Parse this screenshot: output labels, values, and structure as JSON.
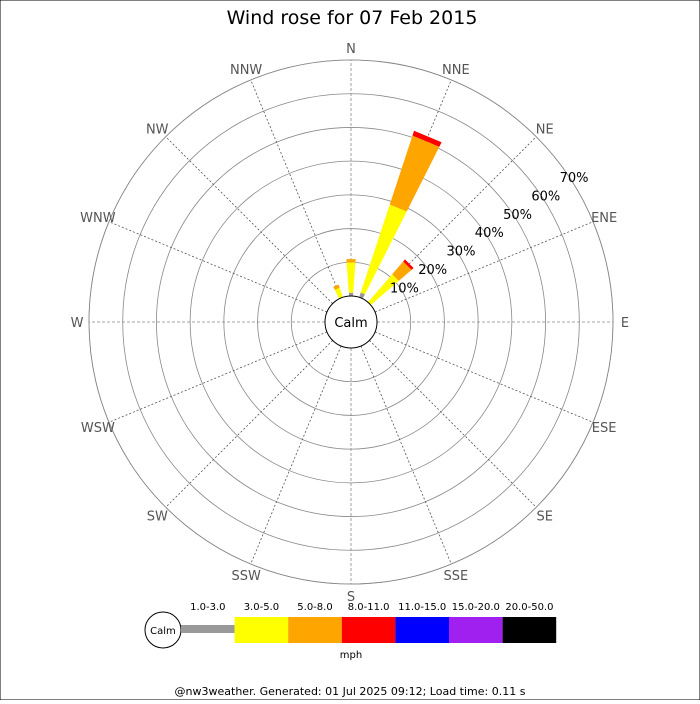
{
  "chart_data": {
    "type": "wind-rose",
    "title": "Wind rose for 07 Feb 2015",
    "calm_label": "Calm",
    "directions": [
      "N",
      "NNE",
      "NE",
      "ENE",
      "E",
      "ESE",
      "SE",
      "SSE",
      "S",
      "SSW",
      "SW",
      "WSW",
      "W",
      "WNW",
      "NW",
      "NNW"
    ],
    "radial_ticks": [
      "10%",
      "20%",
      "30%",
      "40%",
      "50%",
      "60%",
      "70%"
    ],
    "radial_values": [
      10,
      20,
      30,
      40,
      50,
      60,
      70
    ],
    "rmax": 70,
    "speed_bins": [
      {
        "label": "1.0-3.0",
        "color": "#999999"
      },
      {
        "label": "3.0-5.0",
        "color": "#ffff00"
      },
      {
        "label": "5.0-8.0",
        "color": "#ffa500"
      },
      {
        "label": "8.0-11.0",
        "color": "#ff0000"
      },
      {
        "label": "11.0-15.0",
        "color": "#0000ff"
      },
      {
        "label": "15.0-20.0",
        "color": "#a020f0"
      },
      {
        "label": "20.0-50.0",
        "color": "#000000"
      }
    ],
    "units": "mph",
    "series": [
      {
        "direction": "N",
        "values": [
          1.0,
          9.0,
          1.0,
          0,
          0,
          0,
          0
        ]
      },
      {
        "direction": "NNE",
        "values": [
          1.5,
          27.5,
          21.5,
          1.5,
          0,
          0,
          0
        ]
      },
      {
        "direction": "NE",
        "values": [
          0,
          11.0,
          5.0,
          0.8,
          0,
          0,
          0
        ]
      },
      {
        "direction": "NNW",
        "values": [
          0,
          3.0,
          1.0,
          0,
          0,
          0,
          0
        ]
      }
    ]
  },
  "footer": "@nw3weather. Generated: 01 Jul 2025 09:12; Load time: 0.11 s"
}
